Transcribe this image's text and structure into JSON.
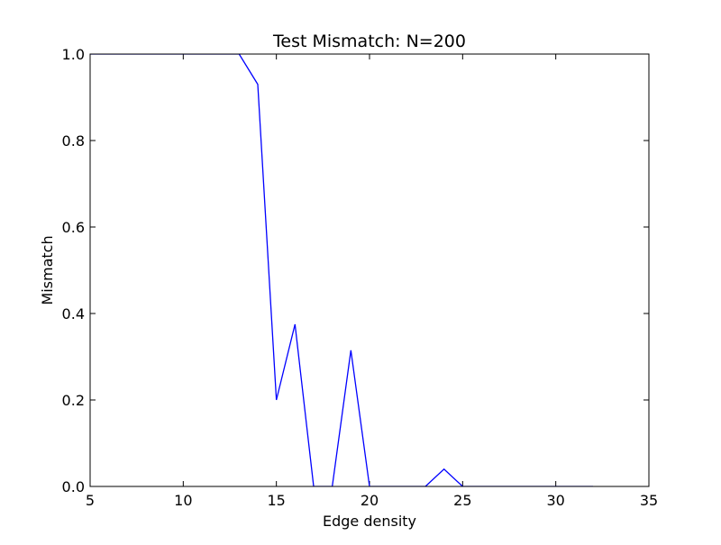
{
  "chart_data": {
    "type": "line",
    "title": "Test Mismatch: N=200",
    "xlabel": "Edge density",
    "ylabel": "Mismatch",
    "xlim": [
      5,
      35
    ],
    "ylim": [
      0.0,
      1.0
    ],
    "grid": false,
    "x_ticks": [
      "5",
      "10",
      "15",
      "20",
      "25",
      "30",
      "35"
    ],
    "y_ticks": [
      "0.0",
      "0.2",
      "0.4",
      "0.6",
      "0.8",
      "1.0"
    ],
    "line_color": "#0000ff",
    "series": [
      {
        "x": [
          5,
          6,
          7,
          8,
          9,
          10,
          11,
          12,
          13,
          14,
          15,
          16,
          17,
          18,
          19,
          20,
          21,
          22,
          23,
          24,
          25,
          26,
          27,
          28,
          29,
          30,
          31,
          32
        ],
        "y": [
          1.0,
          1.0,
          1.0,
          1.0,
          1.0,
          1.0,
          1.0,
          1.0,
          1.0,
          0.93,
          0.2,
          0.375,
          0.0,
          0.0,
          0.315,
          0.0,
          0.0,
          0.0,
          0.0,
          0.04,
          0.0,
          0.0,
          0.0,
          0.0,
          0.0,
          0.0,
          0.0,
          0.0
        ]
      }
    ]
  }
}
